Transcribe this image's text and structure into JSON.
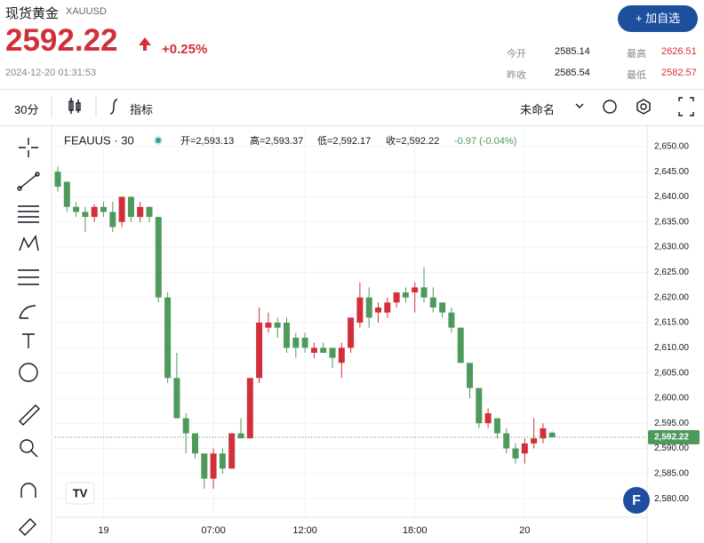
{
  "header": {
    "name": "现货黄金",
    "symbol": "XAUUSD",
    "price": "2592.22",
    "change": "+0.25%",
    "time": "2024-12-20 01:31:53",
    "button": "+ 加自选",
    "stats": [
      {
        "label": "今开",
        "value": "2585.14"
      },
      {
        "label": "最高",
        "value": "2626.51"
      },
      {
        "label": "昨收",
        "value": "2585.54"
      },
      {
        "label": "最低",
        "value": "2582.57"
      }
    ]
  },
  "toolbar": {
    "interval": "30分",
    "indicators": "指标",
    "layout": "未命名"
  },
  "legend": {
    "symbol": "FEAUUS · 30",
    "open": "开=2,593.13",
    "high": "高=2,593.37",
    "low": "低=2,592.17",
    "close": "收=2,592.22",
    "change": "-0.97 (-0.04%)"
  },
  "chart_data": {
    "type": "candlestick",
    "categories": [
      null,
      null,
      null,
      null,
      null,
      "19",
      null,
      null,
      null,
      null,
      null,
      null,
      null,
      null,
      null,
      null,
      null,
      "07:00",
      null,
      null,
      null,
      null,
      null,
      null,
      null,
      null,
      null,
      "12:00",
      null,
      null,
      null,
      null,
      null,
      null,
      null,
      null,
      null,
      null,
      null,
      "18:00",
      null,
      null,
      null,
      null,
      null,
      null,
      null,
      null,
      null,
      null,
      null,
      "20",
      null,
      null,
      null
    ],
    "open": [
      2645,
      2643,
      2638,
      2637,
      2636,
      2638,
      2637,
      2635,
      2640,
      2636,
      2638,
      2636,
      2620,
      2604,
      2596,
      2593,
      2589,
      2584,
      2589,
      2586,
      2593,
      2592,
      2604,
      2614,
      2615,
      2615,
      2612,
      2612,
      2609,
      2610,
      2610,
      2607,
      2610,
      2615,
      2620,
      2617,
      2617,
      2619,
      2621,
      2621,
      2622,
      2620,
      2619,
      2617,
      2614,
      2607,
      2602,
      2595,
      2596,
      2593,
      2590,
      2589,
      2591,
      2592,
      2593.13
    ],
    "high": [
      2646,
      2643,
      2639,
      2638,
      2638.5,
      2639,
      2639,
      2640,
      2640,
      2639,
      2638,
      2636,
      2621,
      2609,
      2597,
      2593,
      2589,
      2590,
      2590,
      2593,
      2596,
      2604,
      2618,
      2617,
      2616,
      2616,
      2613,
      2613,
      2611,
      2611,
      2610,
      2611,
      2616,
      2623,
      2622,
      2619,
      2620,
      2621,
      2622,
      2623,
      2626,
      2622,
      2619,
      2618,
      2614,
      2607,
      2602,
      2598,
      2596,
      2594,
      2591,
      2592,
      2596,
      2595,
      2593.37
    ],
    "low": [
      2641,
      2637,
      2636,
      2633,
      2635,
      2636,
      2633,
      2634,
      2635,
      2635,
      2635,
      2619,
      2603,
      2596,
      2589,
      2588,
      2582,
      2582,
      2585,
      2586,
      2592,
      2592,
      2603,
      2613,
      2612,
      2609,
      2608,
      2609,
      2608,
      2609,
      2606,
      2604,
      2609,
      2614,
      2614,
      2615,
      2616,
      2618,
      2619,
      2617,
      2619,
      2617,
      2616,
      2613,
      2607,
      2600,
      2594,
      2594,
      2592,
      2589,
      2587,
      2587,
      2590,
      2591,
      2592.17
    ],
    "close": [
      2642,
      2638,
      2637,
      2636,
      2638,
      2637,
      2634,
      2640,
      2636,
      2638,
      2636,
      2620,
      2604,
      2596,
      2593,
      2589,
      2584,
      2589,
      2586,
      2593,
      2592,
      2604,
      2615,
      2615,
      2614,
      2610,
      2610,
      2610,
      2610,
      2609,
      2608,
      2610,
      2616,
      2620,
      2616,
      2618,
      2619,
      2621,
      2620,
      2622,
      2620,
      2618,
      2617,
      2614,
      2607,
      2602,
      2595,
      2597,
      2593,
      2590,
      2588,
      2591,
      2592,
      2594,
      2592.22
    ],
    "up_color": "#d1303a",
    "down_color": "#4e9a5c",
    "ylim": [
      2575.8,
      2653.5
    ],
    "yticks": [
      {
        "value": 2580,
        "label": "2,580.00"
      },
      {
        "value": 2585,
        "label": "2,585.00"
      },
      {
        "value": 2590,
        "label": "2,590.00"
      },
      {
        "value": 2595,
        "label": "2,595.00"
      },
      {
        "value": 2600,
        "label": "2,600.00"
      },
      {
        "value": 2605,
        "label": "2,605.00"
      },
      {
        "value": 2610,
        "label": "2,610.00"
      },
      {
        "value": 2615,
        "label": "2,615.00"
      },
      {
        "value": 2620,
        "label": "2,620.00"
      },
      {
        "value": 2625,
        "label": "2,625.00"
      },
      {
        "value": 2630,
        "label": "2,630.00"
      },
      {
        "value": 2635,
        "label": "2,635.00"
      },
      {
        "value": 2640,
        "label": "2,640.00"
      },
      {
        "value": 2645,
        "label": "2,645.00"
      },
      {
        "value": 2650,
        "label": "2,650.00"
      }
    ],
    "last_price": {
      "value": 2592.22,
      "label": "2,592.22"
    },
    "grid": true
  }
}
